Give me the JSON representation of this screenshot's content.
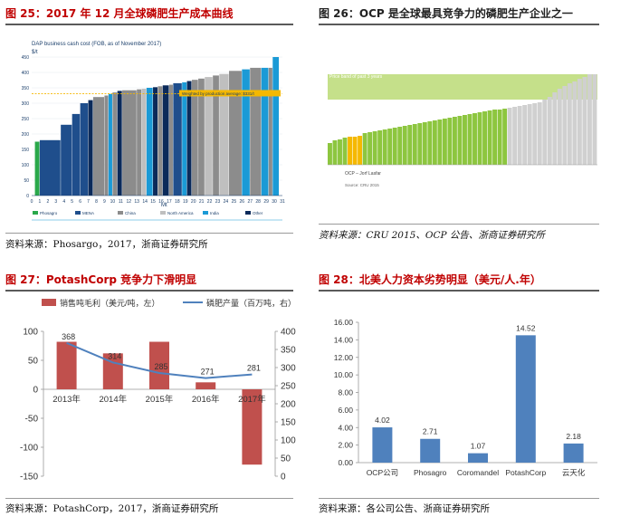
{
  "panels": [
    {
      "title": "图 25：2017 年 12 月全球磷肥生产成本曲线",
      "source": "资料来源：Phosargo，2017，浙商证券研究所",
      "chart_data": {
        "type": "bar",
        "title": "DAP business cash cost (FOB, as of November 2017)",
        "ylabel": "$/t",
        "xlabel": "Mt",
        "ylim": [
          0,
          450
        ],
        "yticks": [
          0,
          50,
          100,
          150,
          200,
          250,
          300,
          350,
          400,
          450
        ],
        "xticks": [
          "0",
          "1",
          "2",
          "3",
          "4",
          "5",
          "6",
          "7",
          "8",
          "9",
          "10",
          "11",
          "12",
          "13",
          "14",
          "15",
          "16",
          "17",
          "18",
          "19",
          "20",
          "21",
          "22",
          "23",
          "24",
          "25",
          "26",
          "27",
          "28",
          "29",
          "30",
          "31"
        ],
        "xlim": [
          0,
          31
        ],
        "average_line": {
          "value": 331,
          "label": "Weighted by production average: $331/t"
        },
        "legend": [
          "Phosagro",
          "MENA",
          "China",
          "North America",
          "India",
          "Other"
        ],
        "legend_colors": [
          "#2aa84a",
          "#1f4e8c",
          "#8c8c8c",
          "#bfbfbf",
          "#1b9ad6",
          "#0b2a5a"
        ],
        "bars": [
          {
            "group": "Phosagro",
            "x0": 0.4,
            "x1": 1.0,
            "value": 175
          },
          {
            "group": "MENA",
            "x0": 1.0,
            "x1": 3.6,
            "value": 180
          },
          {
            "group": "MENA",
            "x0": 3.6,
            "x1": 5.0,
            "value": 230
          },
          {
            "group": "MENA",
            "x0": 5.0,
            "x1": 6.0,
            "value": 265
          },
          {
            "group": "MENA",
            "x0": 6.0,
            "x1": 7.0,
            "value": 300
          },
          {
            "group": "Other",
            "x0": 7.0,
            "x1": 7.6,
            "value": 310
          },
          {
            "group": "China",
            "x0": 7.6,
            "x1": 9.0,
            "value": 320
          },
          {
            "group": "China",
            "x0": 9.0,
            "x1": 9.5,
            "value": 325
          },
          {
            "group": "India",
            "x0": 9.5,
            "x1": 10.0,
            "value": 330
          },
          {
            "group": "China",
            "x0": 10.0,
            "x1": 10.6,
            "value": 335
          },
          {
            "group": "Other",
            "x0": 10.6,
            "x1": 11.2,
            "value": 340
          },
          {
            "group": "China",
            "x0": 11.2,
            "x1": 13.0,
            "value": 342
          },
          {
            "group": "China",
            "x0": 13.0,
            "x1": 13.6,
            "value": 345
          },
          {
            "group": "North America",
            "x0": 13.6,
            "x1": 14.2,
            "value": 347
          },
          {
            "group": "India",
            "x0": 14.2,
            "x1": 15.0,
            "value": 350
          },
          {
            "group": "Other",
            "x0": 15.0,
            "x1": 15.6,
            "value": 352
          },
          {
            "group": "China",
            "x0": 15.6,
            "x1": 16.2,
            "value": 355
          },
          {
            "group": "Other",
            "x0": 16.2,
            "x1": 17.0,
            "value": 358
          },
          {
            "group": "China",
            "x0": 17.0,
            "x1": 17.5,
            "value": 360
          },
          {
            "group": "MENA",
            "x0": 17.5,
            "x1": 18.6,
            "value": 365
          },
          {
            "group": "India",
            "x0": 18.6,
            "x1": 19.2,
            "value": 368
          },
          {
            "group": "Other",
            "x0": 19.2,
            "x1": 19.8,
            "value": 372
          },
          {
            "group": "China",
            "x0": 19.8,
            "x1": 20.6,
            "value": 376
          },
          {
            "group": "China",
            "x0": 20.6,
            "x1": 21.4,
            "value": 380
          },
          {
            "group": "North America",
            "x0": 21.4,
            "x1": 22.4,
            "value": 385
          },
          {
            "group": "China",
            "x0": 22.4,
            "x1": 23.2,
            "value": 390
          },
          {
            "group": "North America",
            "x0": 23.2,
            "x1": 24.4,
            "value": 395
          },
          {
            "group": "China",
            "x0": 24.4,
            "x1": 26.0,
            "value": 405
          },
          {
            "group": "India",
            "x0": 26.0,
            "x1": 27.0,
            "value": 410
          },
          {
            "group": "China",
            "x0": 27.0,
            "x1": 28.4,
            "value": 415
          },
          {
            "group": "India",
            "x0": 28.4,
            "x1": 29.3,
            "value": 415
          },
          {
            "group": "China",
            "x0": 29.3,
            "x1": 29.8,
            "value": 415
          },
          {
            "group": "India",
            "x0": 29.8,
            "x1": 30.6,
            "value": 450
          }
        ]
      }
    },
    {
      "title": "图 26：OCP 是全球最具竞争力的磷肥生产企业之一",
      "source": "资料来源：CRU 2015、OCP 公告、浙商证券研究所",
      "chart_data": {
        "type": "bar",
        "title": "",
        "band_label": "Price band of past 3 years",
        "highlight_label": "OCP – Jorf Lasfar",
        "footnote": "Source: CRU 2015",
        "series_colors": {
          "other": "#8dc63f",
          "ocp": "#f5b800",
          "high_cost": "#d0d0d0",
          "band": "#c5e08a"
        },
        "band": [
          0.72,
          1.0
        ],
        "values": [
          0.24,
          0.27,
          0.28,
          0.3,
          0.31,
          0.31,
          0.32,
          0.35,
          0.36,
          0.37,
          0.38,
          0.39,
          0.4,
          0.41,
          0.42,
          0.43,
          0.44,
          0.45,
          0.46,
          0.47,
          0.48,
          0.49,
          0.5,
          0.51,
          0.52,
          0.53,
          0.54,
          0.55,
          0.56,
          0.57,
          0.58,
          0.59,
          0.6,
          0.61,
          0.61,
          0.62,
          0.63,
          0.64,
          0.65,
          0.66,
          0.67,
          0.68,
          0.69,
          0.72,
          0.75,
          0.8,
          0.84,
          0.87,
          0.9,
          0.92,
          0.95,
          0.97,
          1.0,
          1.0
        ],
        "ocp_indices": [
          4,
          5,
          6
        ],
        "high_cost_from": 36
      }
    },
    {
      "title": "图 27：PotashCorp 竞争力下滑明显",
      "source": "资料来源：PotashCorp，2017，浙商证券研究所",
      "chart_data": {
        "type": "bar",
        "categories": [
          "2013年",
          "2014年",
          "2015年",
          "2016年",
          "2017年"
        ],
        "series": [
          {
            "name": "销售吨毛利（美元/吨，左）",
            "type": "bar",
            "axis": "left",
            "values": [
              82,
              62,
              82,
              12,
              -130
            ],
            "color": "#c0504d"
          },
          {
            "name": "磷肥产量（百万吨，右）",
            "type": "line",
            "axis": "right",
            "values": [
              368,
              314,
              285,
              271,
              281
            ],
            "color": "#4f81bd"
          }
        ],
        "ylim_left": [
          -150,
          100
        ],
        "yticks_left": [
          -150,
          -100,
          -50,
          0,
          50,
          100
        ],
        "ylim_right": [
          0,
          400
        ],
        "yticks_right": [
          0,
          50,
          100,
          150,
          200,
          250,
          300,
          350,
          400
        ]
      }
    },
    {
      "title": "图 28：北美人力资本劣势明显（美元/人.年）",
      "source": "资料来源：各公司公告、浙商证券研究所",
      "chart_data": {
        "type": "bar",
        "categories": [
          "OCP公司",
          "Phosagro",
          "Coromandel",
          "PotashCorp",
          "云天化"
        ],
        "values": [
          4.02,
          2.71,
          1.07,
          14.52,
          2.18
        ],
        "labels": [
          "4.02",
          "2.71",
          "1.07",
          "14.52",
          "2.18"
        ],
        "color": "#4f81bd",
        "ylim": [
          0,
          16
        ],
        "yticks": [
          "0.00",
          "2.00",
          "4.00",
          "6.00",
          "8.00",
          "10.00",
          "12.00",
          "14.00",
          "16.00"
        ]
      }
    }
  ]
}
